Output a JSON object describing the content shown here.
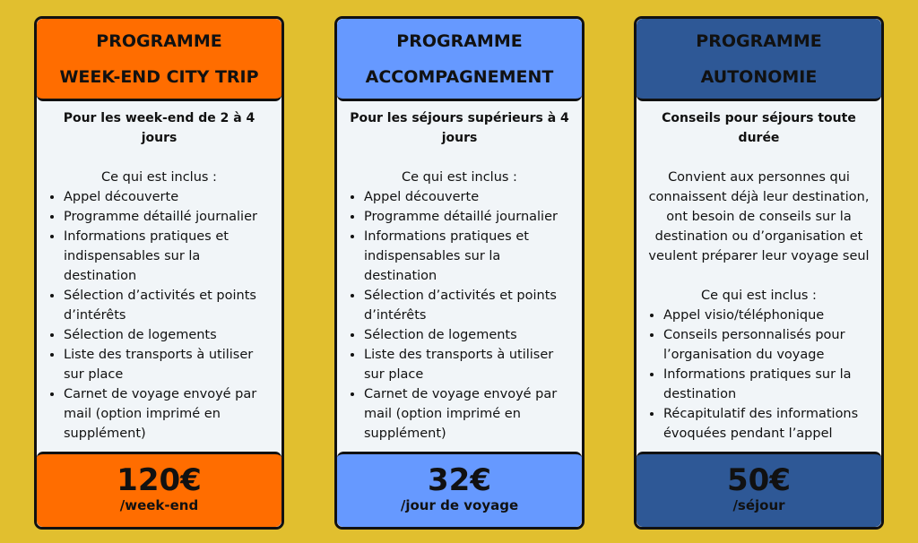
{
  "colors": {
    "background": "#e1bf2f",
    "orange": "#ff6d00",
    "light_blue": "#6699ff",
    "dark_blue": "#2e5896"
  },
  "cards": [
    {
      "title_line1": "PROGRAMME",
      "title_line2": "WEEK-END CITY TRIP",
      "subtitle": "Pour les week-end de 2 à 4 jours",
      "included_label": "Ce qui est inclus :",
      "items": [
        "Appel découverte",
        "Programme détaillé journalier",
        "Informations pratiques et indispensables sur la destination",
        "Sélection d’activités et points d’intérêts",
        "Sélection de logements",
        "Liste des transports à utiliser sur place",
        "Carnet de voyage envoyé par mail (option imprimé en supplément)"
      ],
      "price": "120€",
      "unit": "/week-end"
    },
    {
      "title_line1": "PROGRAMME",
      "title_line2": "ACCOMPAGNEMENT",
      "subtitle": "Pour les séjours supérieurs à 4 jours",
      "included_label": "Ce qui est inclus :",
      "items": [
        "Appel découverte",
        "Programme détaillé journalier",
        "Informations pratiques et indispensables sur la destination",
        "Sélection d’activités et points d’intérêts",
        "Sélection de logements",
        "Liste des transports à utiliser sur place",
        "Carnet de voyage envoyé par mail (option imprimé en supplément)"
      ],
      "price": "32€",
      "unit": "/jour de voyage"
    },
    {
      "title_line1": "PROGRAMME",
      "title_line2": "AUTONOMIE",
      "subtitle": "Conseils pour séjours toute durée",
      "description": "Convient aux personnes qui connaissent déjà leur destination, ont besoin de conseils sur la destination ou d’organisation et veulent préparer leur voyage seul",
      "included_label": "Ce qui est inclus :",
      "items": [
        "Appel visio/téléphonique",
        "Conseils personnalisés pour l’organisation du voyage",
        "Informations pratiques sur la destination",
        "Récapitulatif des informations évoquées pendant l’appel"
      ],
      "price": "50€",
      "unit": "/séjour"
    }
  ]
}
